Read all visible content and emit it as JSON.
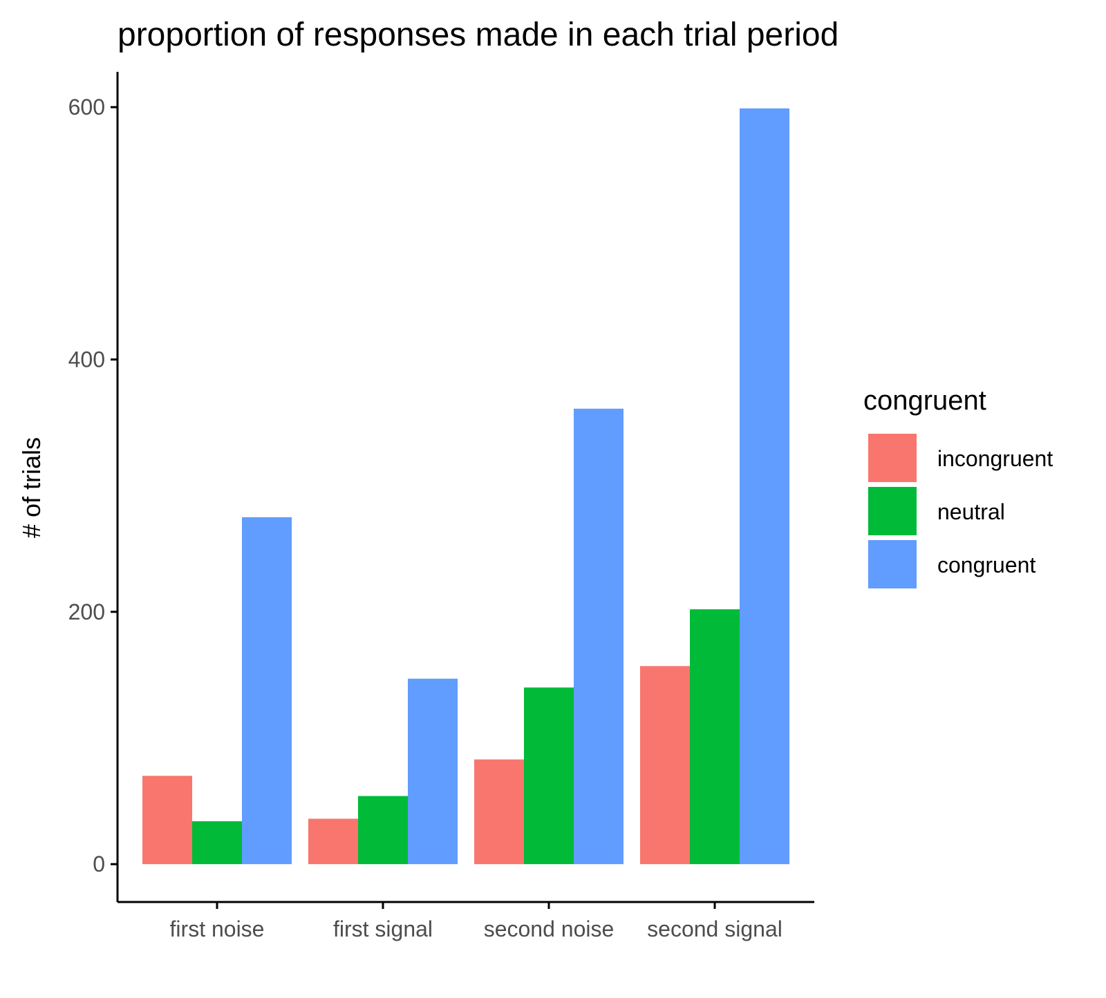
{
  "chart_data": {
    "type": "bar",
    "title": "proportion of responses made in each trial period",
    "xlabel": "",
    "ylabel": "# of trials",
    "categories": [
      "first noise",
      "first signal",
      "second noise",
      "second signal"
    ],
    "series": [
      {
        "name": "incongruent",
        "color": "#F8766D",
        "values": [
          70,
          36,
          83,
          157
        ]
      },
      {
        "name": "neutral",
        "color": "#00BA38",
        "values": [
          34,
          54,
          140,
          202
        ]
      },
      {
        "name": "congruent",
        "color": "#619CFF",
        "values": [
          275,
          147,
          361,
          599
        ]
      }
    ],
    "yticks": [
      0,
      200,
      400,
      600
    ],
    "ytick_labels": [
      "0",
      "200",
      "400",
      "600"
    ],
    "ylim": [
      -30,
      628
    ],
    "grid": false,
    "legend": {
      "title": "congruent",
      "placement": "right"
    }
  }
}
